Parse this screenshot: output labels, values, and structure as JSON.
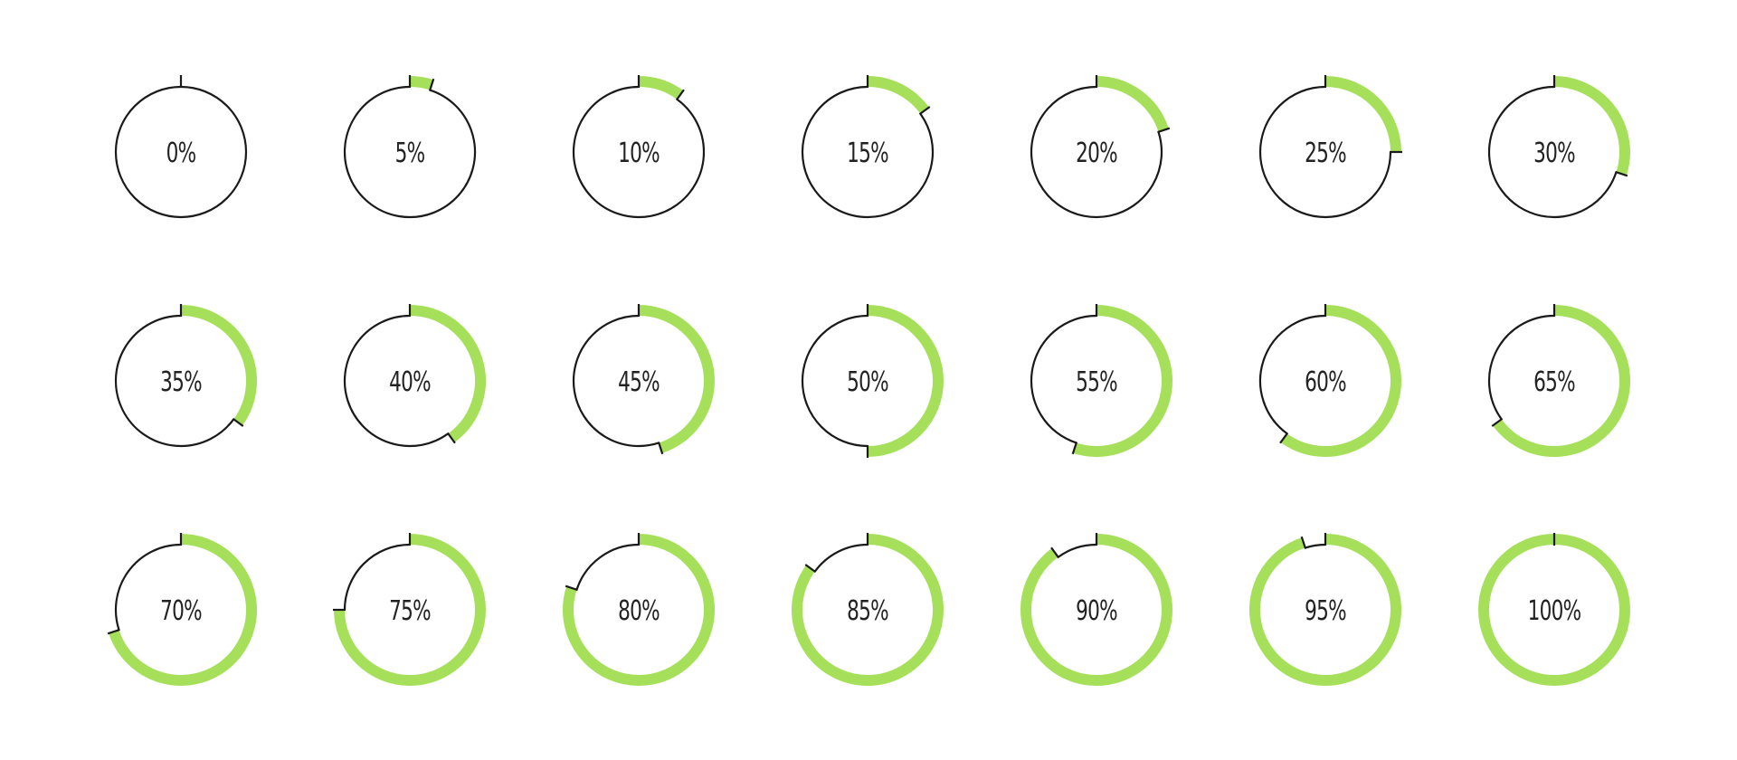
{
  "theme": {
    "accent": "#a6e05a",
    "outline": "#1a1a1a",
    "background": "#ffffff"
  },
  "indicators": [
    {
      "label": "0%",
      "value": 0
    },
    {
      "label": "5%",
      "value": 5
    },
    {
      "label": "10%",
      "value": 10
    },
    {
      "label": "15%",
      "value": 15
    },
    {
      "label": "20%",
      "value": 20
    },
    {
      "label": "25%",
      "value": 25
    },
    {
      "label": "30%",
      "value": 30
    },
    {
      "label": "35%",
      "value": 35
    },
    {
      "label": "40%",
      "value": 40
    },
    {
      "label": "45%",
      "value": 45
    },
    {
      "label": "50%",
      "value": 50
    },
    {
      "label": "55%",
      "value": 55
    },
    {
      "label": "60%",
      "value": 60
    },
    {
      "label": "65%",
      "value": 65
    },
    {
      "label": "70%",
      "value": 70
    },
    {
      "label": "75%",
      "value": 75
    },
    {
      "label": "80%",
      "value": 80
    },
    {
      "label": "85%",
      "value": 85
    },
    {
      "label": "90%",
      "value": 90
    },
    {
      "label": "95%",
      "value": 95
    },
    {
      "label": "100%",
      "value": 100
    }
  ]
}
